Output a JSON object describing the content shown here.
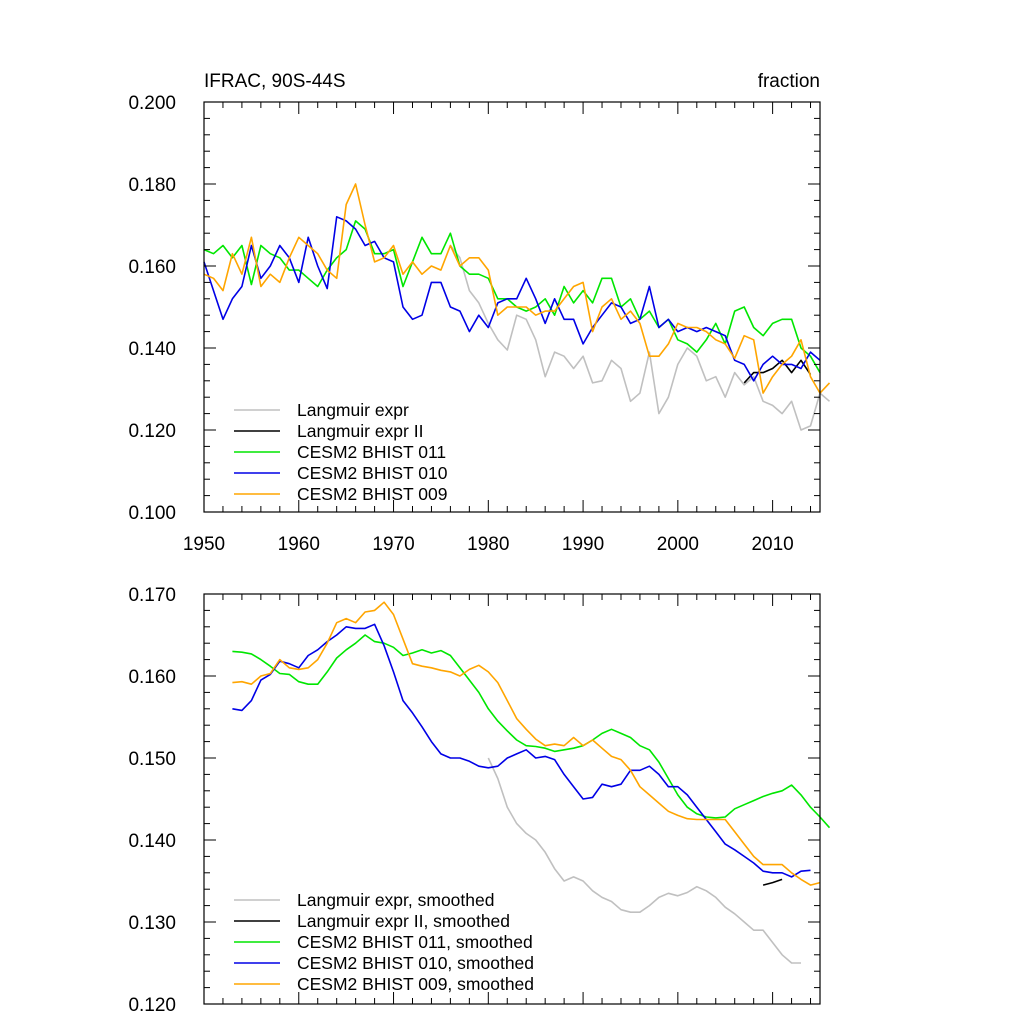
{
  "figure": {
    "title_left": "IFRAC, 90S-44S",
    "title_right": "fraction"
  },
  "colors": {
    "Langmuir expr": "#c0c0c0",
    "Langmuir expr II": "#000000",
    "CESM2 BHIST 011": "#00e600",
    "CESM2 BHIST 010": "#0000e6",
    "CESM2 BHIST 009": "#ffa500"
  },
  "chart_data": [
    {
      "type": "line",
      "title": "IFRAC, 90S-44S",
      "units": "fraction",
      "xlim": [
        1950,
        2015
      ],
      "ylim": [
        0.1,
        0.2
      ],
      "xticks": [
        1950,
        1960,
        1970,
        1980,
        1990,
        2000,
        2010
      ],
      "xtick_labels": [
        "1950",
        "1960",
        "1970",
        "1980",
        "1990",
        "2000",
        "2010"
      ],
      "yticks": [
        0.1,
        0.12,
        0.14,
        0.16,
        0.18,
        0.2
      ],
      "ytick_labels": [
        "0.100",
        "0.120",
        "0.140",
        "0.160",
        "0.180",
        "0.200"
      ],
      "legend": [
        "Langmuir expr",
        "Langmuir expr II",
        "CESM2 BHIST 011",
        "CESM2 BHIST 010",
        "CESM2 BHIST 009"
      ],
      "legend_location": "bottom-left",
      "series": [
        {
          "name": "Langmuir expr",
          "x_start": 1976,
          "values": [
            0.165,
            0.162,
            0.154,
            0.151,
            0.146,
            0.142,
            0.1395,
            0.148,
            0.147,
            0.142,
            0.133,
            0.139,
            0.138,
            0.135,
            0.138,
            0.1315,
            0.132,
            0.137,
            0.135,
            0.127,
            0.129,
            0.139,
            0.124,
            0.128,
            0.136,
            0.14,
            0.138,
            0.132,
            0.133,
            0.128,
            0.134,
            0.131,
            0.133,
            0.127,
            0.126,
            0.124,
            0.127,
            0.12,
            0.121,
            0.129,
            0.127
          ]
        },
        {
          "name": "Langmuir expr II",
          "x_start": 2007,
          "values": [
            0.1315,
            0.134,
            0.134,
            0.135,
            0.137,
            0.134,
            0.137,
            0.1335
          ]
        },
        {
          "name": "CESM2 BHIST 011",
          "x_start": 1950,
          "values": [
            0.164,
            0.163,
            0.165,
            0.162,
            0.165,
            0.1555,
            0.165,
            0.163,
            0.162,
            0.159,
            0.159,
            0.157,
            0.155,
            0.159,
            0.162,
            0.164,
            0.171,
            0.169,
            0.163,
            0.163,
            0.164,
            0.155,
            0.161,
            0.167,
            0.163,
            0.163,
            0.168,
            0.16,
            0.158,
            0.158,
            0.157,
            0.152,
            0.152,
            0.15,
            0.149,
            0.15,
            0.152,
            0.148,
            0.155,
            0.151,
            0.154,
            0.151,
            0.157,
            0.157,
            0.15,
            0.152,
            0.147,
            0.149,
            0.145,
            0.147,
            0.142,
            0.141,
            0.139,
            0.142,
            0.146,
            0.141,
            0.149,
            0.15,
            0.145,
            0.143,
            0.146,
            0.147,
            0.147,
            0.14,
            0.138,
            0.134
          ]
        },
        {
          "name": "CESM2 BHIST 010",
          "x_start": 1950,
          "values": [
            0.161,
            0.154,
            0.147,
            0.152,
            0.155,
            0.165,
            0.157,
            0.16,
            0.165,
            0.162,
            0.156,
            0.167,
            0.16,
            0.1545,
            0.172,
            0.171,
            0.169,
            0.165,
            0.166,
            0.162,
            0.161,
            0.15,
            0.147,
            0.148,
            0.156,
            0.156,
            0.15,
            0.149,
            0.144,
            0.148,
            0.145,
            0.151,
            0.152,
            0.152,
            0.157,
            0.152,
            0.146,
            0.152,
            0.147,
            0.147,
            0.141,
            0.145,
            0.148,
            0.151,
            0.15,
            0.146,
            0.147,
            0.155,
            0.145,
            0.147,
            0.144,
            0.145,
            0.144,
            0.145,
            0.144,
            0.143,
            0.137,
            0.136,
            0.132,
            0.136,
            0.138,
            0.136,
            0.136,
            0.135,
            0.139,
            0.137
          ]
        },
        {
          "name": "CESM2 BHIST 009",
          "x_start": 1950,
          "values": [
            0.158,
            0.157,
            0.154,
            0.163,
            0.158,
            0.167,
            0.155,
            0.158,
            0.156,
            0.162,
            0.167,
            0.165,
            0.163,
            0.159,
            0.157,
            0.175,
            0.18,
            0.17,
            0.161,
            0.162,
            0.165,
            0.158,
            0.161,
            0.158,
            0.16,
            0.159,
            0.165,
            0.16,
            0.162,
            0.162,
            0.159,
            0.148,
            0.15,
            0.15,
            0.15,
            0.148,
            0.149,
            0.149,
            0.152,
            0.155,
            0.156,
            0.144,
            0.15,
            0.152,
            0.147,
            0.149,
            0.146,
            0.138,
            0.138,
            0.141,
            0.146,
            0.145,
            0.145,
            0.144,
            0.142,
            0.141,
            0.1375,
            0.143,
            0.142,
            0.129,
            0.133,
            0.136,
            0.138,
            0.142,
            0.133,
            0.129,
            0.1315
          ]
        }
      ]
    },
    {
      "type": "line",
      "xlim": [
        1950,
        2015
      ],
      "ylim": [
        0.12,
        0.17
      ],
      "xticks": [
        1950,
        1960,
        1970,
        1980,
        1990,
        2000,
        2010
      ],
      "yticks": [
        0.12,
        0.13,
        0.14,
        0.15,
        0.16,
        0.17
      ],
      "ytick_labels": [
        "0.120",
        "0.130",
        "0.140",
        "0.150",
        "0.160",
        "0.170"
      ],
      "legend": [
        "Langmuir expr, smoothed",
        "Langmuir expr II, smoothed",
        "CESM2 BHIST 011, smoothed",
        "CESM2 BHIST 010, smoothed",
        "CESM2 BHIST 009, smoothed"
      ],
      "legend_location": "bottom-left",
      "series": [
        {
          "name": "Langmuir expr, smoothed",
          "x_start": 1980,
          "values": [
            0.15,
            0.1475,
            0.144,
            0.142,
            0.1408,
            0.14,
            0.1385,
            0.1365,
            0.135,
            0.1355,
            0.135,
            0.1338,
            0.133,
            0.1325,
            0.1315,
            0.1312,
            0.1312,
            0.132,
            0.133,
            0.1335,
            0.1332,
            0.1336,
            0.1343,
            0.1338,
            0.133,
            0.1318,
            0.131,
            0.13,
            0.129,
            0.129,
            0.1275,
            0.126,
            0.125,
            0.125
          ]
        },
        {
          "name": "Langmuir expr II, smoothed",
          "x_start": 2009,
          "values": [
            0.1345,
            0.1348,
            0.1352
          ]
        },
        {
          "name": "CESM2 BHIST 011, smoothed",
          "x_start": 1953,
          "values": [
            0.163,
            0.1629,
            0.1627,
            0.162,
            0.1612,
            0.1603,
            0.1602,
            0.1593,
            0.159,
            0.159,
            0.1605,
            0.1622,
            0.1632,
            0.164,
            0.165,
            0.1642,
            0.164,
            0.1635,
            0.1625,
            0.1628,
            0.1632,
            0.1628,
            0.1631,
            0.1625,
            0.161,
            0.1595,
            0.158,
            0.156,
            0.1545,
            0.1533,
            0.1522,
            0.1515,
            0.1514,
            0.1512,
            0.1508,
            0.151,
            0.1512,
            0.1515,
            0.1522,
            0.153,
            0.1535,
            0.153,
            0.1525,
            0.1515,
            0.151,
            0.1495,
            0.1475,
            0.1455,
            0.144,
            0.1432,
            0.1428,
            0.1427,
            0.1428,
            0.1438,
            0.1443,
            0.1448,
            0.1453,
            0.1457,
            0.146,
            0.1467,
            0.1455,
            0.144,
            0.1428,
            0.1415
          ]
        },
        {
          "name": "CESM2 BHIST 010, smoothed",
          "x_start": 1953,
          "values": [
            0.156,
            0.1558,
            0.157,
            0.1595,
            0.1602,
            0.1618,
            0.1615,
            0.161,
            0.1625,
            0.1632,
            0.1642,
            0.165,
            0.166,
            0.1658,
            0.1658,
            0.1663,
            0.1637,
            0.1605,
            0.157,
            0.1555,
            0.1538,
            0.152,
            0.1505,
            0.15,
            0.15,
            0.1496,
            0.149,
            0.1488,
            0.149,
            0.15,
            0.1505,
            0.151,
            0.15,
            0.1502,
            0.1498,
            0.148,
            0.1465,
            0.145,
            0.1452,
            0.1468,
            0.1465,
            0.1468,
            0.1485,
            0.1485,
            0.149,
            0.148,
            0.1465,
            0.1465,
            0.1455,
            0.144,
            0.1425,
            0.141,
            0.1395,
            0.1388,
            0.138,
            0.1372,
            0.1362,
            0.136,
            0.136,
            0.1355,
            0.1362,
            0.1363
          ]
        },
        {
          "name": "CESM2 BHIST 009, smoothed",
          "x_start": 1953,
          "values": [
            0.1592,
            0.1593,
            0.159,
            0.16,
            0.1603,
            0.162,
            0.161,
            0.1608,
            0.161,
            0.162,
            0.164,
            0.1665,
            0.167,
            0.1665,
            0.1678,
            0.168,
            0.169,
            0.1675,
            0.1645,
            0.1615,
            0.1612,
            0.161,
            0.1607,
            0.1605,
            0.16,
            0.1608,
            0.1613,
            0.1605,
            0.1592,
            0.157,
            0.1548,
            0.1535,
            0.1523,
            0.1515,
            0.1517,
            0.1515,
            0.1525,
            0.1515,
            0.1522,
            0.1512,
            0.1502,
            0.1498,
            0.1485,
            0.1465,
            0.1455,
            0.1445,
            0.1435,
            0.143,
            0.1426,
            0.1425,
            0.1425,
            0.1425,
            0.1425,
            0.141,
            0.1395,
            0.138,
            0.137,
            0.137,
            0.137,
            0.136,
            0.1352,
            0.1345,
            0.1348
          ]
        }
      ]
    }
  ]
}
